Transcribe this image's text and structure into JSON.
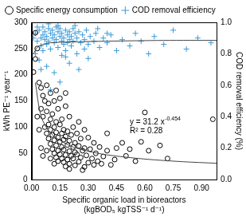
{
  "chart_data": {
    "type": "scatter",
    "xlabel": [
      "Specific organic load in bioreactors",
      "(kgBOD₅ kgTSS⁻¹ d⁻¹)"
    ],
    "ylabel": "kWh PE⁻¹ year⁻¹",
    "y2label": "COD removal efficiency (%)",
    "xlim": [
      0,
      0.98
    ],
    "xticks": [
      {
        "value": 0,
        "label": "0.00"
      },
      {
        "value": 0.15,
        "label": "0.15"
      },
      {
        "value": 0.3,
        "label": "0.30"
      },
      {
        "value": 0.45,
        "label": "0.45"
      },
      {
        "value": 0.6,
        "label": "0.60"
      },
      {
        "value": 0.75,
        "label": "0.75"
      },
      {
        "value": 0.9,
        "label": "0.90"
      }
    ],
    "ylim": [
      0,
      300
    ],
    "yticks": [
      0,
      50,
      100,
      150,
      200,
      250,
      300
    ],
    "y2lim": [
      0,
      1
    ],
    "y2ticks": [
      {
        "value": 0,
        "label": "0.0"
      },
      {
        "value": 0.2,
        "label": "0.2"
      },
      {
        "value": 0.4,
        "label": "0.4"
      },
      {
        "value": 0.6,
        "label": "0.6"
      },
      {
        "value": 0.8,
        "label": "0.8"
      },
      {
        "value": 1,
        "label": "1.0"
      }
    ],
    "grid": false,
    "legend": "top-left",
    "annotations": [
      {
        "text": "y = 31.2 x",
        "superscript": "-0.454"
      },
      {
        "text": "R² = 0.28"
      }
    ],
    "series": [
      {
        "name": "Specific energy consumption",
        "color": "#000000",
        "marker": "circle",
        "x": [
          0.02,
          0.03,
          0.02,
          0.01,
          0.04,
          0.05,
          0.06,
          0.08,
          0.1,
          0.07,
          0.09,
          0.12,
          0.05,
          0.08,
          0.11,
          0.14,
          0.18,
          0.06,
          0.1,
          0.13,
          0.16,
          0.2,
          0.09,
          0.12,
          0.15,
          0.07,
          0.17,
          0.22,
          0.25,
          0.1,
          0.13,
          0.16,
          0.19,
          0.08,
          0.11,
          0.14,
          0.18,
          0.21,
          0.24,
          0.28,
          0.09,
          0.12,
          0.15,
          0.17,
          0.2,
          0.23,
          0.26,
          0.3,
          0.1,
          0.13,
          0.16,
          0.19,
          0.22,
          0.25,
          0.28,
          0.33,
          0.11,
          0.14,
          0.17,
          0.2,
          0.23,
          0.27,
          0.31,
          0.36,
          0.12,
          0.15,
          0.18,
          0.21,
          0.24,
          0.29,
          0.34,
          0.4,
          0.13,
          0.16,
          0.19,
          0.22,
          0.26,
          0.32,
          0.38,
          0.14,
          0.17,
          0.2,
          0.25,
          0.3,
          0.35,
          0.44,
          0.18,
          0.23,
          0.28,
          0.42,
          0.5,
          0.55,
          0.6,
          0.62,
          0.68,
          0.72,
          0.48,
          0.45,
          0.52,
          0.05,
          0.04,
          0.03,
          0.06,
          0.08,
          0.1,
          0.12,
          0.2,
          0.27,
          0.15,
          0.18,
          0.13,
          0.96,
          0.58,
          0.4,
          0.37,
          0.33
        ],
        "values": [
          280,
          250,
          230,
          205,
          185,
          175,
          160,
          180,
          165,
          150,
          145,
          150,
          135,
          130,
          125,
          135,
          140,
          120,
          115,
          110,
          115,
          120,
          105,
          100,
          105,
          100,
          95,
          100,
          110,
          95,
          90,
          88,
          92,
          88,
          85,
          80,
          82,
          85,
          88,
          95,
          78,
          75,
          72,
          76,
          74,
          70,
          78,
          80,
          68,
          65,
          62,
          66,
          62,
          64,
          60,
          70,
          58,
          55,
          57,
          54,
          52,
          55,
          58,
          62,
          50,
          48,
          47,
          45,
          48,
          46,
          50,
          55,
          42,
          40,
          38,
          40,
          42,
          40,
          44,
          35,
          33,
          30,
          34,
          32,
          35,
          38,
          25,
          27,
          24,
          28,
          45,
          35,
          128,
          55,
          65,
          40,
          70,
          60,
          58,
          60,
          95,
          120,
          45,
          55,
          40,
          30,
          20,
          18,
          155,
          165,
          170,
          115,
          72,
          88,
          30,
          28
        ],
        "trend": {
          "x": [
            0.02,
            0.05,
            0.1,
            0.2,
            0.3,
            0.4,
            0.6,
            0.8,
            0.98
          ],
          "values": [
            185,
            121,
            89,
            65,
            54,
            47,
            39,
            34,
            31
          ]
        }
      },
      {
        "name": "COD removal efficiency",
        "color": "#3a9ad9",
        "marker": "cross",
        "axis": "y2",
        "x": [
          0.02,
          0.03,
          0.04,
          0.05,
          0.05,
          0.06,
          0.06,
          0.07,
          0.07,
          0.08,
          0.08,
          0.09,
          0.09,
          0.1,
          0.1,
          0.11,
          0.11,
          0.12,
          0.12,
          0.13,
          0.13,
          0.14,
          0.14,
          0.15,
          0.15,
          0.16,
          0.16,
          0.17,
          0.17,
          0.18,
          0.18,
          0.19,
          0.19,
          0.2,
          0.2,
          0.21,
          0.21,
          0.22,
          0.22,
          0.23,
          0.24,
          0.24,
          0.25,
          0.26,
          0.27,
          0.28,
          0.29,
          0.3,
          0.31,
          0.33,
          0.34,
          0.36,
          0.38,
          0.4,
          0.42,
          0.45,
          0.48,
          0.52,
          0.55,
          0.58,
          0.62,
          0.65,
          0.7,
          0.75,
          0.82,
          0.88,
          0.95,
          0.01,
          0.02,
          0.04,
          0.08,
          0.12,
          0.15,
          0.1,
          0.2,
          0.25,
          0.3,
          0.18,
          0.06,
          0.03,
          0.14,
          0.23,
          0.09,
          0.35,
          0.28,
          0.16,
          0.05,
          0.4
        ],
        "values": [
          0.93,
          0.88,
          0.95,
          0.9,
          0.85,
          0.92,
          0.97,
          0.89,
          0.94,
          0.86,
          0.91,
          0.96,
          0.88,
          0.93,
          0.83,
          0.9,
          0.95,
          0.87,
          0.92,
          0.97,
          0.89,
          0.94,
          0.84,
          0.91,
          0.96,
          0.88,
          0.93,
          0.86,
          0.9,
          0.95,
          0.82,
          0.92,
          0.87,
          0.94,
          0.89,
          0.91,
          0.85,
          0.96,
          0.88,
          0.93,
          0.9,
          0.8,
          0.94,
          0.87,
          0.92,
          0.89,
          0.95,
          0.86,
          0.91,
          0.88,
          0.93,
          0.84,
          0.9,
          0.87,
          0.92,
          0.82,
          0.89,
          0.85,
          0.93,
          0.88,
          0.8,
          0.91,
          0.86,
          0.95,
          0.83,
          0.9,
          0.87,
          0.9,
          0.8,
          0.76,
          0.72,
          0.68,
          0.62,
          0.57,
          0.74,
          0.7,
          0.77,
          0.78,
          0.82,
          0.97,
          0.98,
          0.98,
          0.99,
          0.96,
          0.83,
          0.79,
          0.7,
          0.93
        ],
        "trend": {
          "x": [
            0.01,
            0.03,
            0.06,
            0.1,
            0.2,
            0.4,
            0.7,
            0.98
          ],
          "values": [
            0.8,
            0.84,
            0.86,
            0.87,
            0.875,
            0.88,
            0.885,
            0.885
          ]
        }
      }
    ]
  }
}
